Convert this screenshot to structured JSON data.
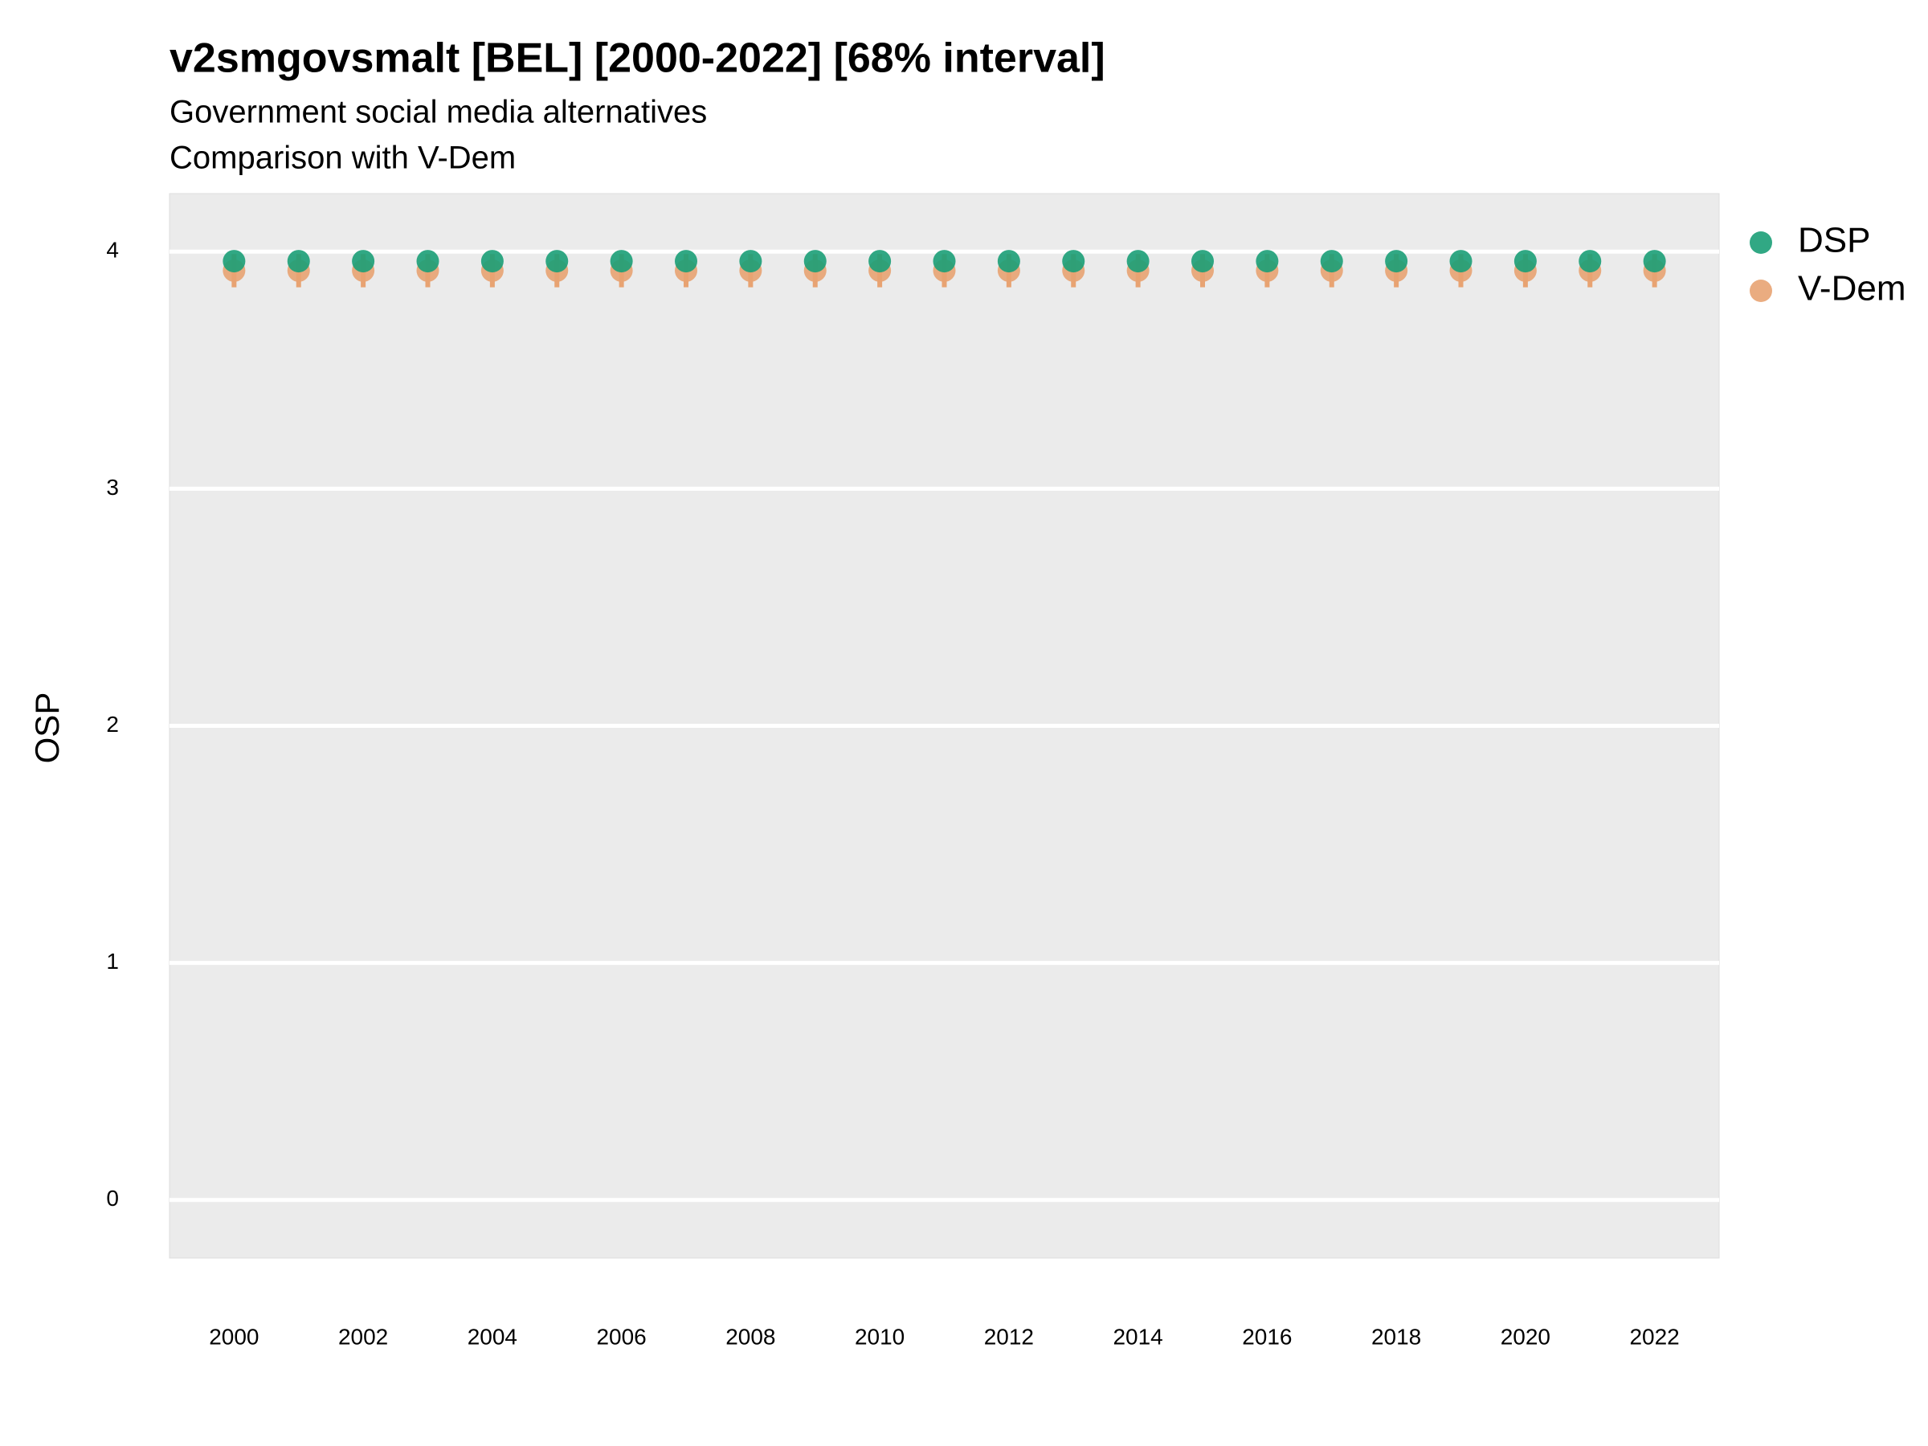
{
  "chart_data": {
    "type": "scatter",
    "title": "v2smgovsmalt [BEL] [2000-2022] [68% interval]",
    "subtitle": "Government social media alternatives",
    "caption": "Comparison with V-Dem",
    "y_label": "OSP",
    "x": [
      2000,
      2001,
      2002,
      2003,
      2004,
      2005,
      2006,
      2007,
      2008,
      2009,
      2010,
      2011,
      2012,
      2013,
      2014,
      2015,
      2016,
      2017,
      2018,
      2019,
      2020,
      2021,
      2022
    ],
    "series": [
      {
        "name": "DSP",
        "color": "#1b9e77",
        "values": [
          3.96,
          3.96,
          3.96,
          3.96,
          3.96,
          3.96,
          3.96,
          3.96,
          3.96,
          3.96,
          3.96,
          3.96,
          3.96,
          3.96,
          3.96,
          3.96,
          3.96,
          3.96,
          3.96,
          3.96,
          3.96,
          3.96,
          3.96
        ]
      },
      {
        "name": "V-Dem",
        "color": "#e8a372",
        "values": [
          3.92,
          3.92,
          3.92,
          3.92,
          3.92,
          3.92,
          3.92,
          3.92,
          3.92,
          3.92,
          3.92,
          3.92,
          3.92,
          3.92,
          3.92,
          3.92,
          3.92,
          3.92,
          3.92,
          3.92,
          3.92,
          3.92,
          3.92
        ],
        "lower": [
          3.85,
          3.85,
          3.85,
          3.85,
          3.85,
          3.85,
          3.85,
          3.85,
          3.85,
          3.85,
          3.85,
          3.85,
          3.85,
          3.85,
          3.85,
          3.85,
          3.85,
          3.85,
          3.85,
          3.85,
          3.85,
          3.85,
          3.85
        ],
        "upper": [
          3.99,
          3.99,
          3.99,
          3.99,
          3.99,
          3.99,
          3.99,
          3.99,
          3.99,
          3.99,
          3.99,
          3.99,
          3.99,
          3.99,
          3.99,
          3.99,
          3.99,
          3.99,
          3.99,
          3.99,
          3.99,
          3.99,
          3.99
        ]
      }
    ],
    "xlim": [
      1999,
      2023
    ],
    "xticks": [
      2000,
      2002,
      2004,
      2006,
      2008,
      2010,
      2012,
      2014,
      2016,
      2018,
      2020,
      2022
    ],
    "ylim": [
      -0.245,
      4.245
    ],
    "yticks": [
      0,
      1,
      2,
      3,
      4
    ],
    "grid": true,
    "legend_position": "right"
  }
}
